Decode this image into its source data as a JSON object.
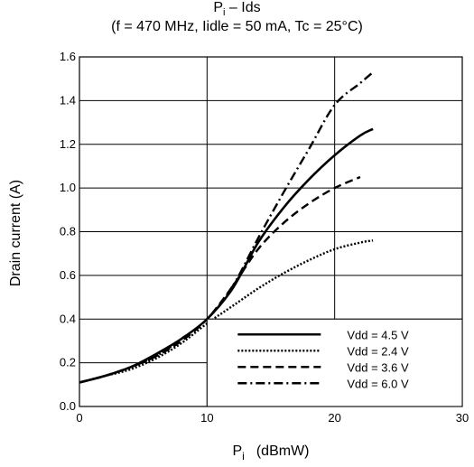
{
  "chart_data": {
    "type": "line",
    "title_main": "P",
    "title_sub": "i",
    "title_rest": " – Ids",
    "subtitle": "(f = 470 MHz, Iidle = 50 mA, Tc = 25°C)",
    "xlabel_main": "P",
    "xlabel_sub": "i",
    "xlabel_rest": "(dBmW)",
    "ylabel": "Drain current    (A)",
    "xlim": [
      0,
      30
    ],
    "ylim": [
      0,
      1.6
    ],
    "xticks": [
      "0",
      "10",
      "20",
      "30"
    ],
    "yticks": [
      "0.0",
      "0.2",
      "0.4",
      "0.6",
      "0.8",
      "1.0",
      "1.2",
      "1.4",
      "1.6"
    ],
    "grid": "major x every 10, y every 0.2",
    "legend_position": "bottom-right",
    "series": [
      {
        "name": "Vdd = 4.5 V",
        "style": "solid",
        "x": [
          0,
          2,
          4,
          6,
          8,
          10,
          12,
          14,
          16,
          18,
          20,
          22,
          23
        ],
        "y": [
          0.11,
          0.14,
          0.18,
          0.24,
          0.31,
          0.4,
          0.54,
          0.75,
          0.91,
          1.04,
          1.15,
          1.24,
          1.27
        ]
      },
      {
        "name": "Vdd = 2.4 V",
        "style": "dotted",
        "x": [
          0,
          2,
          4,
          6,
          8,
          10,
          12,
          14,
          16,
          18,
          20,
          22,
          23
        ],
        "y": [
          0.11,
          0.14,
          0.17,
          0.22,
          0.29,
          0.38,
          0.46,
          0.54,
          0.61,
          0.67,
          0.72,
          0.75,
          0.76
        ]
      },
      {
        "name": "Vdd = 3.6 V",
        "style": "dashed",
        "x": [
          0,
          2,
          4,
          6,
          8,
          10,
          12,
          14,
          16,
          18,
          20,
          22
        ],
        "y": [
          0.11,
          0.14,
          0.18,
          0.23,
          0.3,
          0.4,
          0.55,
          0.72,
          0.84,
          0.93,
          1.0,
          1.05
        ]
      },
      {
        "name": "Vdd = 6.0 V",
        "style": "dashdot",
        "x": [
          0,
          2,
          4,
          6,
          8,
          10,
          12,
          14,
          16,
          18,
          20,
          22,
          23
        ],
        "y": [
          0.11,
          0.14,
          0.18,
          0.23,
          0.31,
          0.4,
          0.55,
          0.77,
          0.98,
          1.18,
          1.38,
          1.48,
          1.53
        ]
      }
    ]
  }
}
